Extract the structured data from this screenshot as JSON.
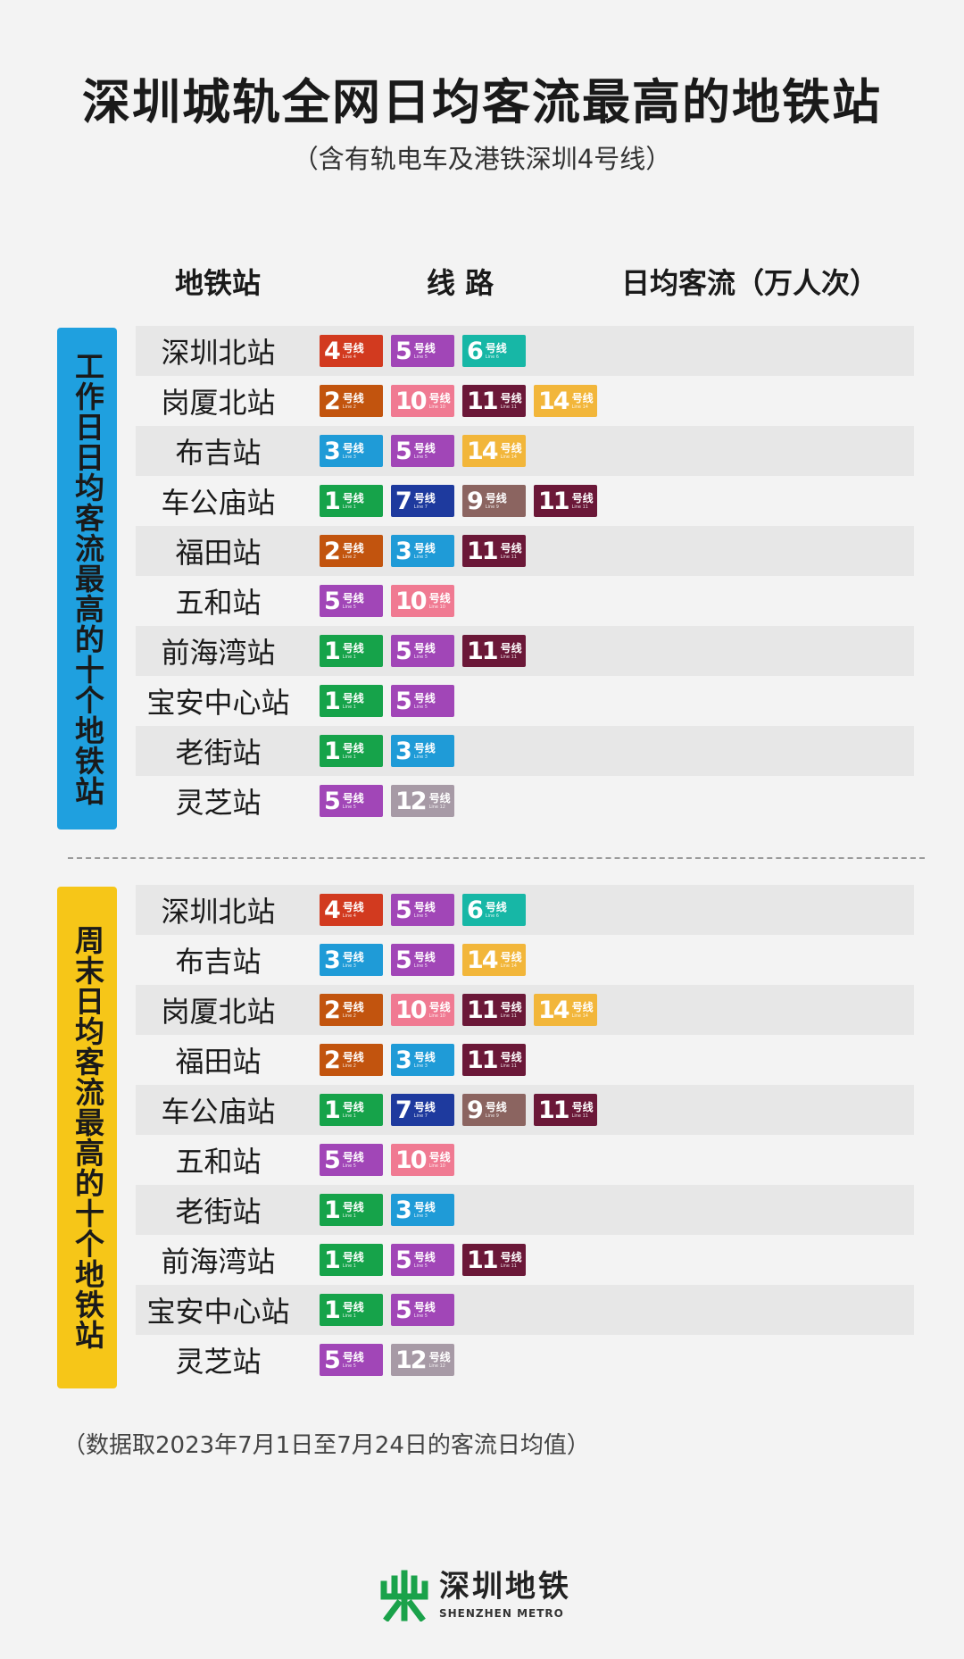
{
  "title": "深圳城轨全网日均客流最高的地铁站",
  "subtitle": "（含有轨电车及港铁深圳4号线）",
  "columns": {
    "station": "地铁站",
    "lines": "线 路",
    "flow": "日均客流（万人次）"
  },
  "hx": "号线",
  "line_colors": {
    "1": "#16a34a",
    "2": "#c2540e",
    "3": "#1f9bd7",
    "4": "#d23a1f",
    "5": "#a146b7",
    "6": "#17b7a6",
    "7": "#1e3a9e",
    "9": "#8b6460",
    "10": "#f07a92",
    "11": "#6b1838",
    "12": "#a79aa6",
    "14": "#f2b63a"
  },
  "weekday": {
    "label": "工作日日均客流最高的十个地铁站",
    "stations": [
      {
        "name": "深圳北站",
        "lines": [
          "4",
          "5",
          "6"
        ]
      },
      {
        "name": "岗厦北站",
        "lines": [
          "2",
          "10",
          "11",
          "14"
        ]
      },
      {
        "name": "布吉站",
        "lines": [
          "3",
          "5",
          "14"
        ]
      },
      {
        "name": "车公庙站",
        "lines": [
          "1",
          "7",
          "9",
          "11"
        ]
      },
      {
        "name": "福田站",
        "lines": [
          "2",
          "3",
          "11"
        ]
      },
      {
        "name": "五和站",
        "lines": [
          "5",
          "10"
        ]
      },
      {
        "name": "前海湾站",
        "lines": [
          "1",
          "5",
          "11"
        ]
      },
      {
        "name": "宝安中心站",
        "lines": [
          "1",
          "5"
        ]
      },
      {
        "name": "老街站",
        "lines": [
          "1",
          "3"
        ]
      },
      {
        "name": "灵芝站",
        "lines": [
          "5",
          "12"
        ]
      }
    ]
  },
  "weekend": {
    "label": "周末日均客流最高的十个地铁站",
    "stations": [
      {
        "name": "深圳北站",
        "lines": [
          "4",
          "5",
          "6"
        ]
      },
      {
        "name": "布吉站",
        "lines": [
          "3",
          "5",
          "14"
        ]
      },
      {
        "name": "岗厦北站",
        "lines": [
          "2",
          "10",
          "11",
          "14"
        ]
      },
      {
        "name": "福田站",
        "lines": [
          "2",
          "3",
          "11"
        ]
      },
      {
        "name": "车公庙站",
        "lines": [
          "1",
          "7",
          "9",
          "11"
        ]
      },
      {
        "name": "五和站",
        "lines": [
          "5",
          "10"
        ]
      },
      {
        "name": "老街站",
        "lines": [
          "1",
          "3"
        ]
      },
      {
        "name": "前海湾站",
        "lines": [
          "1",
          "5",
          "11"
        ]
      },
      {
        "name": "宝安中心站",
        "lines": [
          "1",
          "5"
        ]
      },
      {
        "name": "灵芝站",
        "lines": [
          "5",
          "12"
        ]
      }
    ]
  },
  "footnote": "（数据取2023年7月1日至7月24日的客流日均值）",
  "logo": {
    "cn": "深圳地铁",
    "en": "SHENZHEN METRO",
    "color": "#1aa24a"
  }
}
